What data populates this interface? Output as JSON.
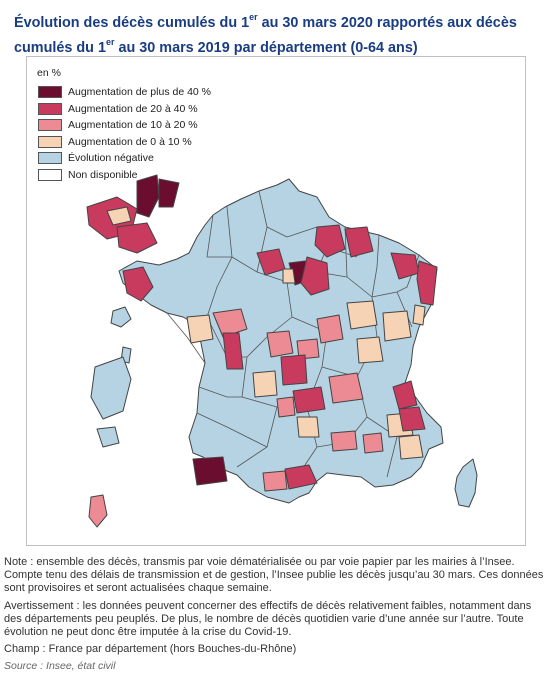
{
  "title": {
    "part1": "Évolution des décès cumulés du 1",
    "sup1": "er",
    "part2": " au 30 mars 2020 rapportés aux décès cumulés du 1",
    "sup2": "er",
    "part3": " au 30 mars 2019 par département (0-64 ans)"
  },
  "legend": {
    "unit": "en %",
    "items": [
      {
        "label": "Augmentation de plus de 40 %",
        "color": "#6b0d2f"
      },
      {
        "label": "Augmentation de 20 à 40 %",
        "color": "#c93a5f"
      },
      {
        "label": "Augmentation de 10 à 20 %",
        "color": "#ec8b93"
      },
      {
        "label": "Augmentation de 0 à 10 %",
        "color": "#f6d3b5"
      },
      {
        "label": "Évolution négative",
        "color": "#b5d3e3"
      },
      {
        "label": "Non disponible",
        "color": "#ffffff"
      }
    ]
  },
  "notes": {
    "note": "Note : ensemble des décès, transmis par voie dématérialisée ou par voie papier par les mairies à l’Insee. Compte tenu des délais de transmission et de gestion, l’Insee publie les décès jusqu’au 30 mars. Ces données sont provisoires et seront actualisées chaque semaine.",
    "warning": "Avertissement : les données peuvent concerner des effectifs de décès relativement faibles, notamment dans des départements peu peuplés. De plus, le nombre de décès quotidien varie d’une année sur l’autre. Toute évolution ne peut donc être imputée à la crise du Covid-19.",
    "scope": "Champ : France par département (hors Bouches-du-Rhône)",
    "source": "Source : Insee, état civil"
  }
}
